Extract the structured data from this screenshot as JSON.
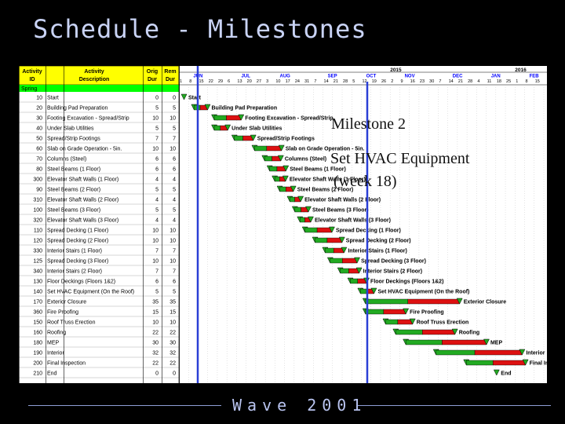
{
  "slide": {
    "title": "Schedule - Milestones",
    "footer": "Wave 2001"
  },
  "annotations": {
    "milestone": "Milestone 2",
    "hvac_line1": "Set HVAC Equipment",
    "hvac_line2": "(week 18)"
  },
  "table": {
    "headers": {
      "activity_id": [
        "Activity",
        "ID"
      ],
      "description": [
        "Activity",
        "Description"
      ],
      "orig_dur": [
        "Orig",
        "Dur"
      ],
      "rem_dur": [
        "Rem",
        "Dur"
      ]
    },
    "group_label": "Spring",
    "rows": [
      {
        "id": "10",
        "desc": "Start",
        "orig": "0",
        "rem": "0",
        "type": "milestone",
        "week": 0,
        "len": 0
      },
      {
        "id": "20",
        "desc": "Building Pad Preparation",
        "orig": "5",
        "rem": "5",
        "type": "bar",
        "week": 1,
        "len": 5
      },
      {
        "id": "30",
        "desc": "Footing Excavation - Spread/Strip",
        "orig": "10",
        "rem": "10",
        "type": "bar",
        "week": 3,
        "len": 10
      },
      {
        "id": "40",
        "desc": "Under Slab Utilities",
        "orig": "5",
        "rem": "5",
        "type": "bar",
        "week": 3,
        "len": 5
      },
      {
        "id": "50",
        "desc": "Spread/Strip Footings",
        "orig": "7",
        "rem": "7",
        "type": "bar",
        "week": 5,
        "len": 7
      },
      {
        "id": "60",
        "desc": "Slab on Grade Operation - 5in.",
        "orig": "10",
        "rem": "10",
        "type": "bar",
        "week": 7,
        "len": 10
      },
      {
        "id": "70",
        "desc": "Columns (Steel)",
        "orig": "6",
        "rem": "6",
        "type": "bar",
        "week": 8,
        "len": 6
      },
      {
        "id": "80",
        "desc": "Steel Beams (1 Floor)",
        "orig": "6",
        "rem": "6",
        "type": "bar",
        "week": 8.5,
        "len": 6
      },
      {
        "id": "300",
        "desc": "Elevator Shaft Walls (1 Floor)",
        "orig": "4",
        "rem": "4",
        "type": "bar",
        "week": 9,
        "len": 4
      },
      {
        "id": "90",
        "desc": "Steel Beams (2 Floor)",
        "orig": "5",
        "rem": "5",
        "type": "bar",
        "week": 9.5,
        "len": 5
      },
      {
        "id": "310",
        "desc": "Elevator Shaft Walls (2 Floor)",
        "orig": "4",
        "rem": "4",
        "type": "bar",
        "week": 10.5,
        "len": 4
      },
      {
        "id": "100",
        "desc": "Steel Beams (3 Floor)",
        "orig": "5",
        "rem": "5",
        "type": "bar",
        "week": 11,
        "len": 5
      },
      {
        "id": "320",
        "desc": "Elevator Shaft Walls (3 Floor)",
        "orig": "4",
        "rem": "4",
        "type": "bar",
        "week": 11.5,
        "len": 4
      },
      {
        "id": "110",
        "desc": "Spread Decking (1 Floor)",
        "orig": "10",
        "rem": "10",
        "type": "bar",
        "week": 12,
        "len": 10
      },
      {
        "id": "120",
        "desc": "Spread Decking (2 Floor)",
        "orig": "10",
        "rem": "10",
        "type": "bar",
        "week": 13,
        "len": 10
      },
      {
        "id": "330",
        "desc": "Interior Stairs (1 Floor)",
        "orig": "7",
        "rem": "7",
        "type": "bar",
        "week": 14,
        "len": 7
      },
      {
        "id": "125",
        "desc": "Spread Decking (3 Floor)",
        "orig": "10",
        "rem": "10",
        "type": "bar",
        "week": 14.5,
        "len": 10
      },
      {
        "id": "340",
        "desc": "Interior Stairs (2 Floor)",
        "orig": "7",
        "rem": "7",
        "type": "bar",
        "week": 15.5,
        "len": 7
      },
      {
        "id": "130",
        "desc": "Floor Deckings (Floors 1&2)",
        "orig": "6",
        "rem": "6",
        "type": "bar",
        "week": 16.5,
        "len": 6
      },
      {
        "id": "140",
        "desc": "Set HVAC Equipment (On the Roof)",
        "orig": "5",
        "rem": "5",
        "type": "bar",
        "week": 17.5,
        "len": 5
      },
      {
        "id": "170",
        "desc": "Exterior Closure",
        "orig": "35",
        "rem": "35",
        "type": "bar",
        "week": 18,
        "len": 35
      },
      {
        "id": "360",
        "desc": "Fire Proofing",
        "orig": "15",
        "rem": "15",
        "type": "bar",
        "week": 18,
        "len": 15
      },
      {
        "id": "150",
        "desc": "Roof Truss Erection",
        "orig": "10",
        "rem": "10",
        "type": "bar",
        "week": 20,
        "len": 10
      },
      {
        "id": "160",
        "desc": "Roofing",
        "orig": "22",
        "rem": "22",
        "type": "bar",
        "week": 21,
        "len": 22
      },
      {
        "id": "180",
        "desc": "MEP",
        "orig": "30",
        "rem": "30",
        "type": "bar",
        "week": 22,
        "len": 30
      },
      {
        "id": "190",
        "desc": "Interior",
        "orig": "32",
        "rem": "32",
        "type": "bar",
        "week": 25,
        "len": 32
      },
      {
        "id": "200",
        "desc": "Final Inspection",
        "orig": "22",
        "rem": "22",
        "type": "bar",
        "week": 28,
        "len": 22
      },
      {
        "id": "210",
        "desc": "End",
        "orig": "0",
        "rem": "0",
        "type": "milestone",
        "week": 31,
        "len": 0
      }
    ]
  },
  "timeline": {
    "years": [
      "2015",
      "2016"
    ],
    "months": [
      "JUN",
      "JUL",
      "AUG",
      "SEP",
      "OCT",
      "NOV",
      "DEC",
      "JAN",
      "FEB"
    ],
    "days": [
      "1",
      "8",
      "15",
      "22",
      "29",
      "6",
      "13",
      "20",
      "27",
      "3",
      "10",
      "17",
      "24",
      "31",
      "7",
      "14",
      "21",
      "28",
      "5",
      "12",
      "19",
      "26",
      "2",
      "9",
      "16",
      "23",
      "30",
      "7",
      "14",
      "21",
      "28",
      "4",
      "11",
      "18",
      "25",
      "1",
      "8",
      "15"
    ]
  },
  "colors": {
    "header_bg": "#ffff00",
    "group_bg": "#00ff00",
    "bar_done": "#22aa22",
    "bar_remaining": "#dd1111",
    "milestone_line": "#2a3fd6"
  }
}
